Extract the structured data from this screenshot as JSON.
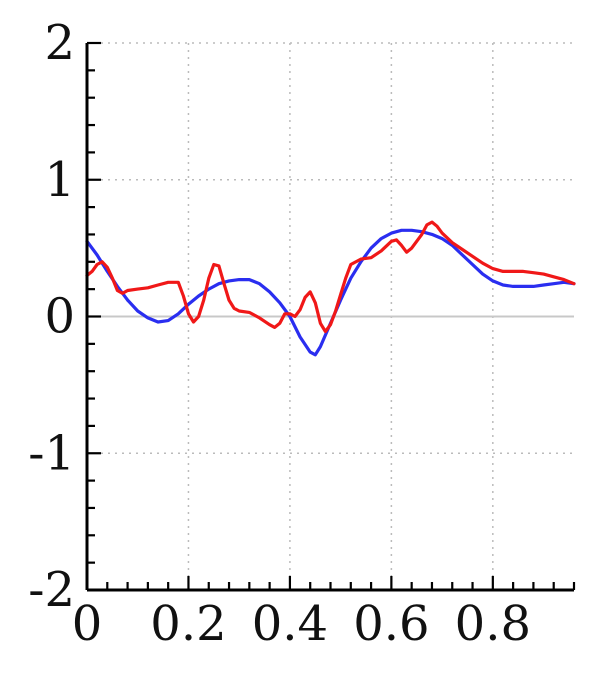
{
  "chart_data": {
    "type": "line",
    "title": "",
    "xlabel": "",
    "ylabel": "",
    "xlim": [
      0,
      0.96
    ],
    "ylim": [
      -2,
      2
    ],
    "x_ticks": [
      0,
      0.2,
      0.4,
      0.6,
      0.8
    ],
    "x_tick_labels": [
      "0",
      "0.2",
      "0.4",
      "0.6",
      "0.8"
    ],
    "y_ticks": [
      -2,
      -1,
      0,
      1,
      2
    ],
    "y_tick_labels": [
      "-2",
      "-1",
      "0",
      "1",
      "2"
    ],
    "grid": true,
    "zero_line": true,
    "colors": {
      "blue": "#2a2ef0",
      "red": "#f01818",
      "grid": "#bbbbbb",
      "zero": "#c8c8c8",
      "axis": "#000000"
    },
    "series": [
      {
        "color": "#2a2ef0",
        "points": [
          [
            0.0,
            0.55
          ],
          [
            0.02,
            0.45
          ],
          [
            0.04,
            0.33
          ],
          [
            0.06,
            0.22
          ],
          [
            0.08,
            0.12
          ],
          [
            0.1,
            0.04
          ],
          [
            0.12,
            -0.01
          ],
          [
            0.14,
            -0.04
          ],
          [
            0.16,
            -0.03
          ],
          [
            0.18,
            0.02
          ],
          [
            0.2,
            0.09
          ],
          [
            0.22,
            0.15
          ],
          [
            0.24,
            0.2
          ],
          [
            0.26,
            0.24
          ],
          [
            0.28,
            0.26
          ],
          [
            0.3,
            0.27
          ],
          [
            0.32,
            0.27
          ],
          [
            0.34,
            0.24
          ],
          [
            0.36,
            0.18
          ],
          [
            0.38,
            0.1
          ],
          [
            0.4,
            0.0
          ],
          [
            0.42,
            -0.15
          ],
          [
            0.44,
            -0.26
          ],
          [
            0.45,
            -0.28
          ],
          [
            0.46,
            -0.22
          ],
          [
            0.48,
            -0.05
          ],
          [
            0.5,
            0.12
          ],
          [
            0.52,
            0.28
          ],
          [
            0.54,
            0.4
          ],
          [
            0.56,
            0.5
          ],
          [
            0.58,
            0.57
          ],
          [
            0.6,
            0.61
          ],
          [
            0.62,
            0.63
          ],
          [
            0.64,
            0.63
          ],
          [
            0.66,
            0.62
          ],
          [
            0.68,
            0.6
          ],
          [
            0.7,
            0.57
          ],
          [
            0.72,
            0.52
          ],
          [
            0.74,
            0.45
          ],
          [
            0.76,
            0.38
          ],
          [
            0.78,
            0.31
          ],
          [
            0.8,
            0.26
          ],
          [
            0.82,
            0.23
          ],
          [
            0.84,
            0.22
          ],
          [
            0.86,
            0.22
          ],
          [
            0.88,
            0.22
          ],
          [
            0.9,
            0.23
          ],
          [
            0.92,
            0.24
          ],
          [
            0.94,
            0.25
          ],
          [
            0.96,
            0.24
          ]
        ]
      },
      {
        "color": "#f01818",
        "points": [
          [
            0.0,
            0.3
          ],
          [
            0.01,
            0.33
          ],
          [
            0.02,
            0.38
          ],
          [
            0.03,
            0.4
          ],
          [
            0.04,
            0.36
          ],
          [
            0.05,
            0.28
          ],
          [
            0.06,
            0.19
          ],
          [
            0.07,
            0.17
          ],
          [
            0.08,
            0.19
          ],
          [
            0.1,
            0.2
          ],
          [
            0.12,
            0.21
          ],
          [
            0.14,
            0.23
          ],
          [
            0.16,
            0.25
          ],
          [
            0.18,
            0.25
          ],
          [
            0.19,
            0.15
          ],
          [
            0.2,
            0.02
          ],
          [
            0.21,
            -0.04
          ],
          [
            0.22,
            0.0
          ],
          [
            0.23,
            0.12
          ],
          [
            0.24,
            0.28
          ],
          [
            0.25,
            0.38
          ],
          [
            0.26,
            0.37
          ],
          [
            0.27,
            0.24
          ],
          [
            0.28,
            0.12
          ],
          [
            0.29,
            0.06
          ],
          [
            0.3,
            0.04
          ],
          [
            0.32,
            0.03
          ],
          [
            0.34,
            -0.01
          ],
          [
            0.36,
            -0.06
          ],
          [
            0.37,
            -0.08
          ],
          [
            0.38,
            -0.05
          ],
          [
            0.39,
            0.02
          ],
          [
            0.4,
            0.02
          ],
          [
            0.41,
            0.0
          ],
          [
            0.42,
            0.05
          ],
          [
            0.43,
            0.14
          ],
          [
            0.44,
            0.18
          ],
          [
            0.45,
            0.1
          ],
          [
            0.46,
            -0.05
          ],
          [
            0.47,
            -0.11
          ],
          [
            0.48,
            -0.06
          ],
          [
            0.49,
            0.04
          ],
          [
            0.5,
            0.16
          ],
          [
            0.51,
            0.28
          ],
          [
            0.52,
            0.38
          ],
          [
            0.54,
            0.42
          ],
          [
            0.56,
            0.43
          ],
          [
            0.58,
            0.48
          ],
          [
            0.6,
            0.55
          ],
          [
            0.61,
            0.56
          ],
          [
            0.62,
            0.52
          ],
          [
            0.63,
            0.47
          ],
          [
            0.64,
            0.5
          ],
          [
            0.66,
            0.6
          ],
          [
            0.67,
            0.67
          ],
          [
            0.68,
            0.69
          ],
          [
            0.69,
            0.66
          ],
          [
            0.7,
            0.61
          ],
          [
            0.72,
            0.54
          ],
          [
            0.74,
            0.49
          ],
          [
            0.76,
            0.44
          ],
          [
            0.78,
            0.39
          ],
          [
            0.8,
            0.35
          ],
          [
            0.82,
            0.33
          ],
          [
            0.84,
            0.33
          ],
          [
            0.86,
            0.33
          ],
          [
            0.88,
            0.32
          ],
          [
            0.9,
            0.31
          ],
          [
            0.92,
            0.29
          ],
          [
            0.94,
            0.27
          ],
          [
            0.96,
            0.24
          ]
        ]
      }
    ]
  }
}
